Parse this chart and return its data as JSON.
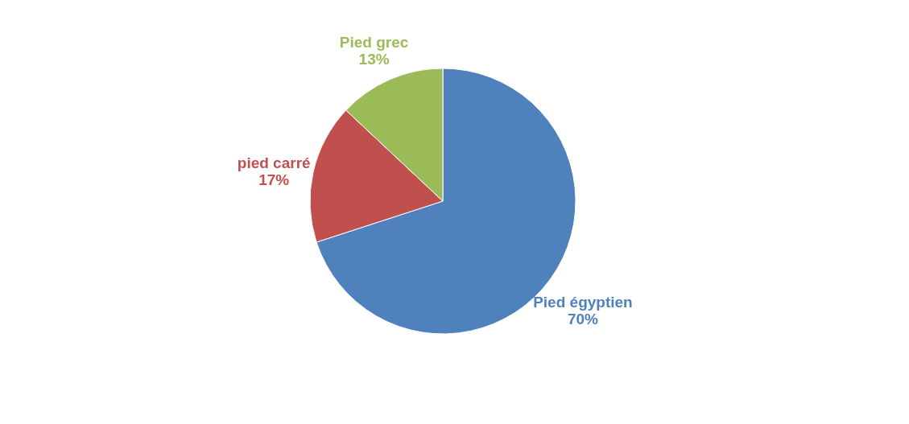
{
  "chart_data": {
    "type": "pie",
    "categories": [
      "Pied égyptien",
      "pied carré",
      "Pied grec"
    ],
    "values": [
      70,
      17,
      13
    ],
    "value_labels": [
      "70%",
      "17%",
      "13%"
    ],
    "colors": [
      "#4f81bd",
      "#c0504d",
      "#9bbb59"
    ],
    "legend": false
  }
}
